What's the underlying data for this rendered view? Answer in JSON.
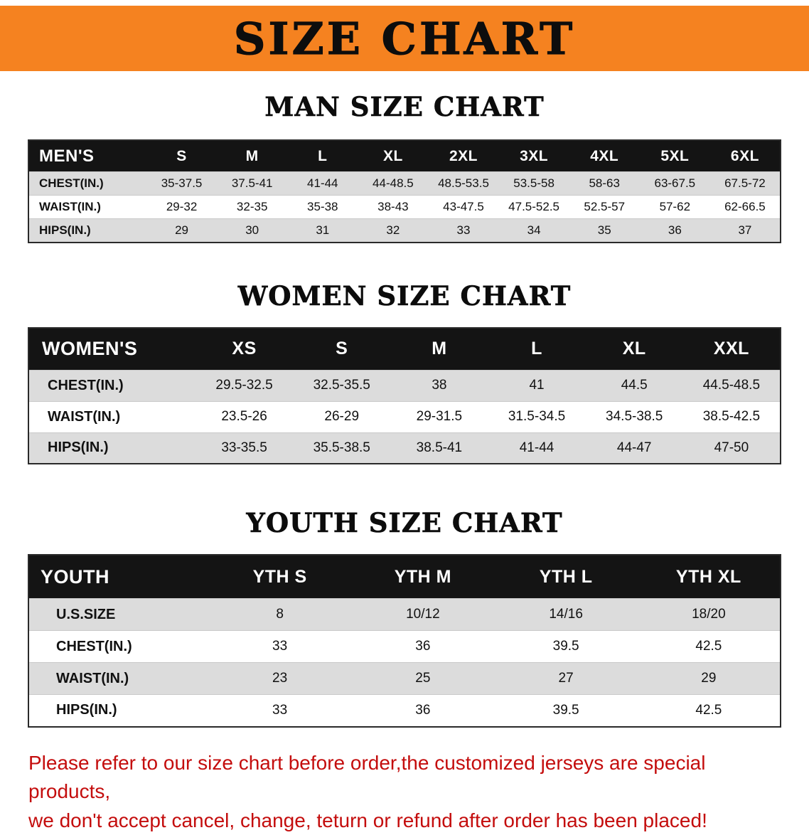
{
  "page": {
    "banner_title": "SIZE CHART",
    "accent_color": "#f58220",
    "disclaimer_color": "#c40d0d",
    "disclaimer_line1": "Please refer to our size chart before order,the customized jerseys are special products,",
    "disclaimer_line2": "we don't accept cancel, change, teturn or refund after order has been placed!"
  },
  "chart_data": [
    {
      "type": "table",
      "title": "MAN SIZE CHART",
      "header": [
        "MEN'S",
        "S",
        "M",
        "L",
        "XL",
        "2XL",
        "3XL",
        "4XL",
        "5XL",
        "6XL"
      ],
      "rows": [
        [
          "CHEST(IN.)",
          "35-37.5",
          "37.5-41",
          "41-44",
          "44-48.5",
          "48.5-53.5",
          "53.5-58",
          "58-63",
          "63-67.5",
          "67.5-72"
        ],
        [
          "WAIST(IN.)",
          "29-32",
          "32-35",
          "35-38",
          "38-43",
          "43-47.5",
          "47.5-52.5",
          "52.5-57",
          "57-62",
          "62-66.5"
        ],
        [
          "HIPS(IN.)",
          "29",
          "30",
          "31",
          "32",
          "33",
          "34",
          "35",
          "36",
          "37"
        ]
      ]
    },
    {
      "type": "table",
      "title": "WOMEN SIZE CHART",
      "header": [
        "WOMEN'S",
        "XS",
        "S",
        "M",
        "L",
        "XL",
        "XXL"
      ],
      "rows": [
        [
          "CHEST(IN.)",
          "29.5-32.5",
          "32.5-35.5",
          "38",
          "41",
          "44.5",
          "44.5-48.5"
        ],
        [
          "WAIST(IN.)",
          "23.5-26",
          "26-29",
          "29-31.5",
          "31.5-34.5",
          "34.5-38.5",
          "38.5-42.5"
        ],
        [
          "HIPS(IN.)",
          "33-35.5",
          "35.5-38.5",
          "38.5-41",
          "41-44",
          "44-47",
          "47-50"
        ]
      ]
    },
    {
      "type": "table",
      "title": "YOUTH SIZE CHART",
      "header": [
        "YOUTH",
        "YTH S",
        "YTH M",
        "YTH L",
        "YTH XL"
      ],
      "rows": [
        [
          "U.S.SIZE",
          "8",
          "10/12",
          "14/16",
          "18/20"
        ],
        [
          "CHEST(IN.)",
          "33",
          "36",
          "39.5",
          "42.5"
        ],
        [
          "WAIST(IN.)",
          "23",
          "25",
          "27",
          "29"
        ],
        [
          "HIPS(IN.)",
          "33",
          "36",
          "39.5",
          "42.5"
        ]
      ]
    }
  ]
}
